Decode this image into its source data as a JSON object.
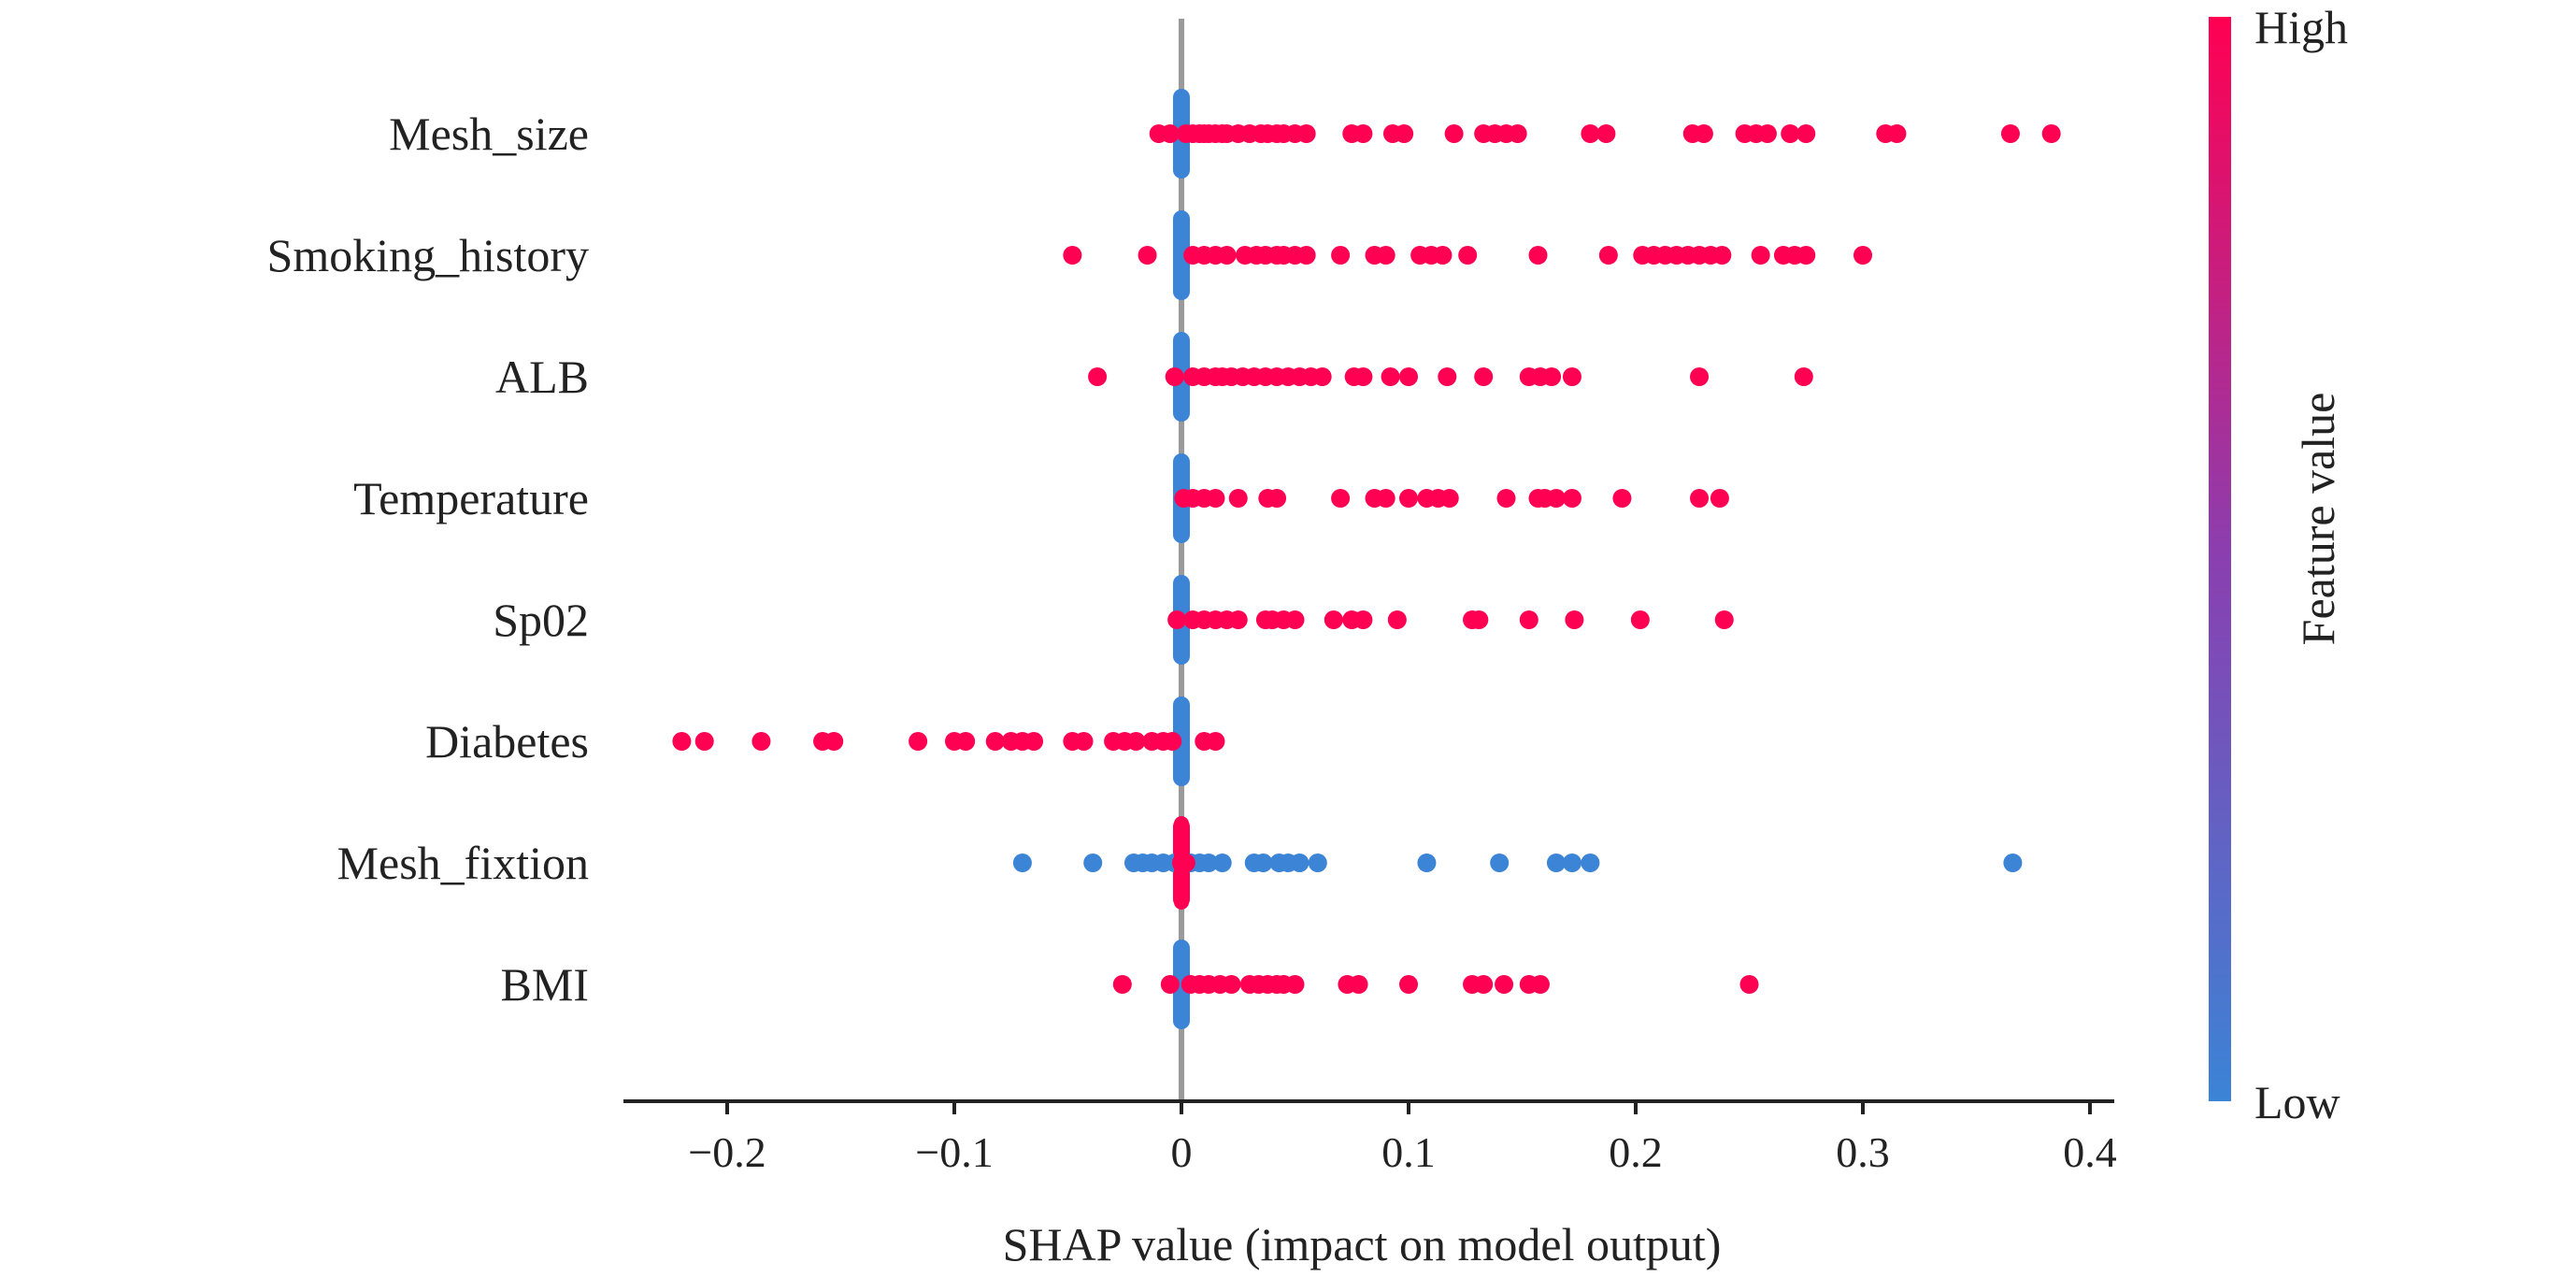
{
  "chart_data": {
    "type": "scatter",
    "subtype": "shap-beeswarm",
    "title": "",
    "xlabel": "SHAP value (impact on model output)",
    "ylabel": "",
    "xlim": [
      -0.25,
      0.41
    ],
    "x_ticks": [
      -0.2,
      -0.1,
      0,
      0.1,
      0.2,
      0.3,
      0.4
    ],
    "x_tick_labels": [
      "−0.2",
      "−0.1",
      "0",
      "0.1",
      "0.2",
      "0.3",
      "0.4"
    ],
    "zero_line": true,
    "grid": false,
    "colors": {
      "high": "#ff0052",
      "low": "#3b84d6",
      "zero_line": "#9a9a9a",
      "axis": "#222222"
    },
    "colorbar": {
      "title": "Feature value",
      "high_label": "High",
      "low_label": "Low"
    },
    "features": [
      {
        "name": "Mesh_size",
        "high_points": [
          -0.01,
          -0.005,
          0.002,
          0.005,
          0.008,
          0.01,
          0.012,
          0.015,
          0.018,
          0.02,
          0.025,
          0.03,
          0.035,
          0.038,
          0.042,
          0.045,
          0.05,
          0.055,
          0.075,
          0.08,
          0.093,
          0.098,
          0.12,
          0.133,
          0.138,
          0.143,
          0.148,
          0.18,
          0.187,
          0.225,
          0.23,
          0.248,
          0.253,
          0.258,
          0.268,
          0.275,
          0.31,
          0.315,
          0.365,
          0.383
        ],
        "low_points": [
          0.0
        ]
      },
      {
        "name": "Smoking_history",
        "high_points": [
          -0.048,
          -0.015,
          0.005,
          0.01,
          0.015,
          0.02,
          0.028,
          0.033,
          0.037,
          0.042,
          0.045,
          0.05,
          0.055,
          0.07,
          0.085,
          0.09,
          0.105,
          0.11,
          0.115,
          0.126,
          0.157,
          0.188,
          0.203,
          0.208,
          0.213,
          0.218,
          0.223,
          0.228,
          0.233,
          0.238,
          0.255,
          0.265,
          0.27,
          0.275,
          0.3
        ],
        "low_points": [
          0.0
        ]
      },
      {
        "name": "ALB",
        "high_points": [
          -0.037,
          -0.003,
          0.005,
          0.01,
          0.015,
          0.018,
          0.022,
          0.027,
          0.032,
          0.037,
          0.042,
          0.047,
          0.052,
          0.057,
          0.062,
          0.076,
          0.08,
          0.092,
          0.1,
          0.117,
          0.133,
          0.153,
          0.158,
          0.163,
          0.172,
          0.228,
          0.274
        ],
        "low_points": [
          0.0
        ]
      },
      {
        "name": "Temperature",
        "high_points": [
          0.001,
          0.005,
          0.01,
          0.015,
          0.025,
          0.038,
          0.042,
          0.07,
          0.085,
          0.09,
          0.1,
          0.108,
          0.113,
          0.118,
          0.143,
          0.157,
          0.16,
          0.165,
          0.172,
          0.194,
          0.228,
          0.237
        ],
        "low_points": [
          0.0
        ]
      },
      {
        "name": "Sp02",
        "high_points": [
          -0.002,
          0.005,
          0.01,
          0.015,
          0.02,
          0.025,
          0.037,
          0.04,
          0.045,
          0.05,
          0.067,
          0.075,
          0.08,
          0.095,
          0.128,
          0.131,
          0.153,
          0.173,
          0.202,
          0.239
        ],
        "low_points": [
          0.0
        ]
      },
      {
        "name": "Diabetes",
        "high_points": [
          -0.22,
          -0.21,
          -0.185,
          -0.158,
          -0.153,
          -0.116,
          -0.1,
          -0.095,
          -0.082,
          -0.075,
          -0.07,
          -0.065,
          -0.048,
          -0.043,
          -0.03,
          -0.025,
          -0.02,
          -0.013,
          -0.008,
          -0.004,
          0.01,
          0.015
        ],
        "low_points": [
          0.0
        ]
      },
      {
        "name": "Mesh_fixtion",
        "high_points": [
          0.0,
          0.002
        ],
        "low_points": [
          -0.07,
          -0.039,
          -0.021,
          -0.017,
          -0.013,
          -0.008,
          -0.003,
          0.004,
          0.008,
          0.012,
          0.018,
          0.032,
          0.036,
          0.043,
          0.047,
          0.052,
          0.06,
          0.108,
          0.14,
          0.165,
          0.172,
          0.18,
          0.366
        ]
      },
      {
        "name": "BMI",
        "high_points": [
          -0.026,
          -0.005,
          0.004,
          0.008,
          0.012,
          0.017,
          0.022,
          0.03,
          0.034,
          0.038,
          0.042,
          0.045,
          0.05,
          0.073,
          0.078,
          0.1,
          0.128,
          0.133,
          0.142,
          0.153,
          0.158,
          0.25
        ],
        "low_points": [
          0.0
        ]
      }
    ]
  }
}
